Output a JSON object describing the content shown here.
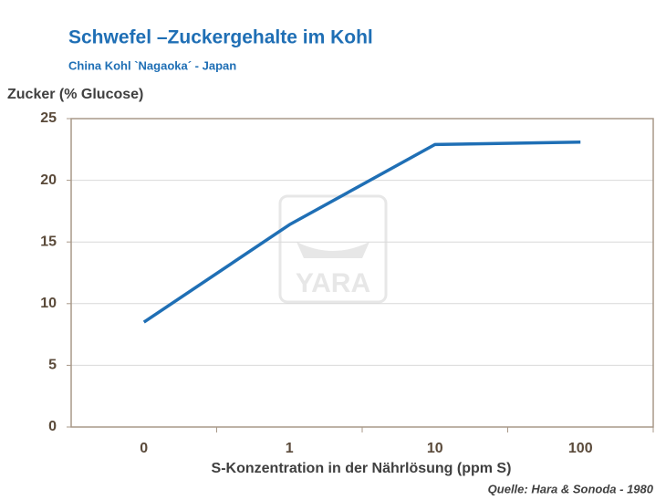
{
  "chart_data": {
    "type": "line",
    "title": "Schwefel –Zuckergehalte im Kohl",
    "subtitle": "China Kohl `Nagaoka´ - Japan",
    "y_label": "Zucker (% Glucose)",
    "x_label": "S-Konzentration in der Nährlösung (ppm S)",
    "source": "Quelle: Hara & Sonoda - 1980",
    "watermark": "YARA",
    "categories": [
      "0",
      "1",
      "10",
      "100"
    ],
    "values": [
      8.5,
      16.4,
      22.9,
      23.1
    ],
    "color": "#1f6fb5",
    "ylim": [
      0,
      25
    ],
    "yticks": [
      0,
      5,
      10,
      15,
      20,
      25
    ],
    "grid": true
  }
}
